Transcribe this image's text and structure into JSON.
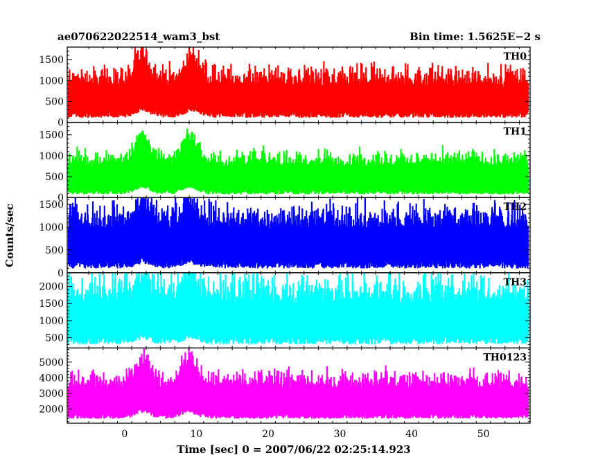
{
  "chart_data": {
    "type": "line",
    "title_left": "ae070622022514_wam3_bst",
    "title_right": "Bin time: 1.5625E−2 s",
    "xlabel": "Time [sec] 0 = 2007/06/22 02:25:14.923",
    "ylabel": "Counts/sec",
    "xlim": [
      -8,
      56.5
    ],
    "x_ticks": [
      0,
      10,
      20,
      30,
      40,
      50
    ],
    "grid": false,
    "panels": [
      {
        "name": "TH0",
        "color": "#ff0000",
        "ylim": [
          0,
          1800
        ],
        "y_ticks": [
          0,
          500,
          1000,
          1500
        ],
        "baseline": 250,
        "mean_level": 800,
        "noise_amplitude": 400,
        "bursts": [
          {
            "t_peak": 2.5,
            "peak": 1800
          },
          {
            "t_peak": 9.5,
            "peak": 1800
          }
        ]
      },
      {
        "name": "TH1",
        "color": "#00ff00",
        "ylim": [
          0,
          1800
        ],
        "y_ticks": [
          0,
          500,
          1000,
          1500
        ],
        "baseline": 180,
        "mean_level": 700,
        "noise_amplitude": 300,
        "bursts": [
          {
            "t_peak": 2.5,
            "peak": 1800
          },
          {
            "t_peak": 9.0,
            "peak": 1800
          }
        ]
      },
      {
        "name": "TH2",
        "color": "#0000ff",
        "ylim": [
          0,
          1650
        ],
        "y_ticks": [
          0,
          500,
          1000,
          1500
        ],
        "baseline": 250,
        "mean_level": 900,
        "noise_amplitude": 450,
        "bursts": [
          {
            "t_peak": 2.5,
            "peak": 1650
          },
          {
            "t_peak": 9.0,
            "peak": 1650
          }
        ]
      },
      {
        "name": "TH3",
        "color": "#00ffff",
        "ylim": [
          200,
          2400
        ],
        "y_ticks": [
          500,
          1000,
          1500,
          2000
        ],
        "baseline": 550,
        "mean_level": 1400,
        "noise_amplitude": 700,
        "bursts": [
          {
            "t_peak": 2.5,
            "peak": 2400
          },
          {
            "t_peak": 9.0,
            "peak": 2400
          }
        ]
      },
      {
        "name": "TH0123",
        "color": "#ff00ff",
        "ylim": [
          1100,
          5900
        ],
        "y_ticks": [
          2000,
          3000,
          4000,
          5000
        ],
        "baseline": 1700,
        "mean_level": 3200,
        "noise_amplitude": 900,
        "bursts": [
          {
            "t_peak": 2.5,
            "peak": 5900
          },
          {
            "t_peak": 9.0,
            "peak": 5800
          }
        ]
      }
    ]
  }
}
